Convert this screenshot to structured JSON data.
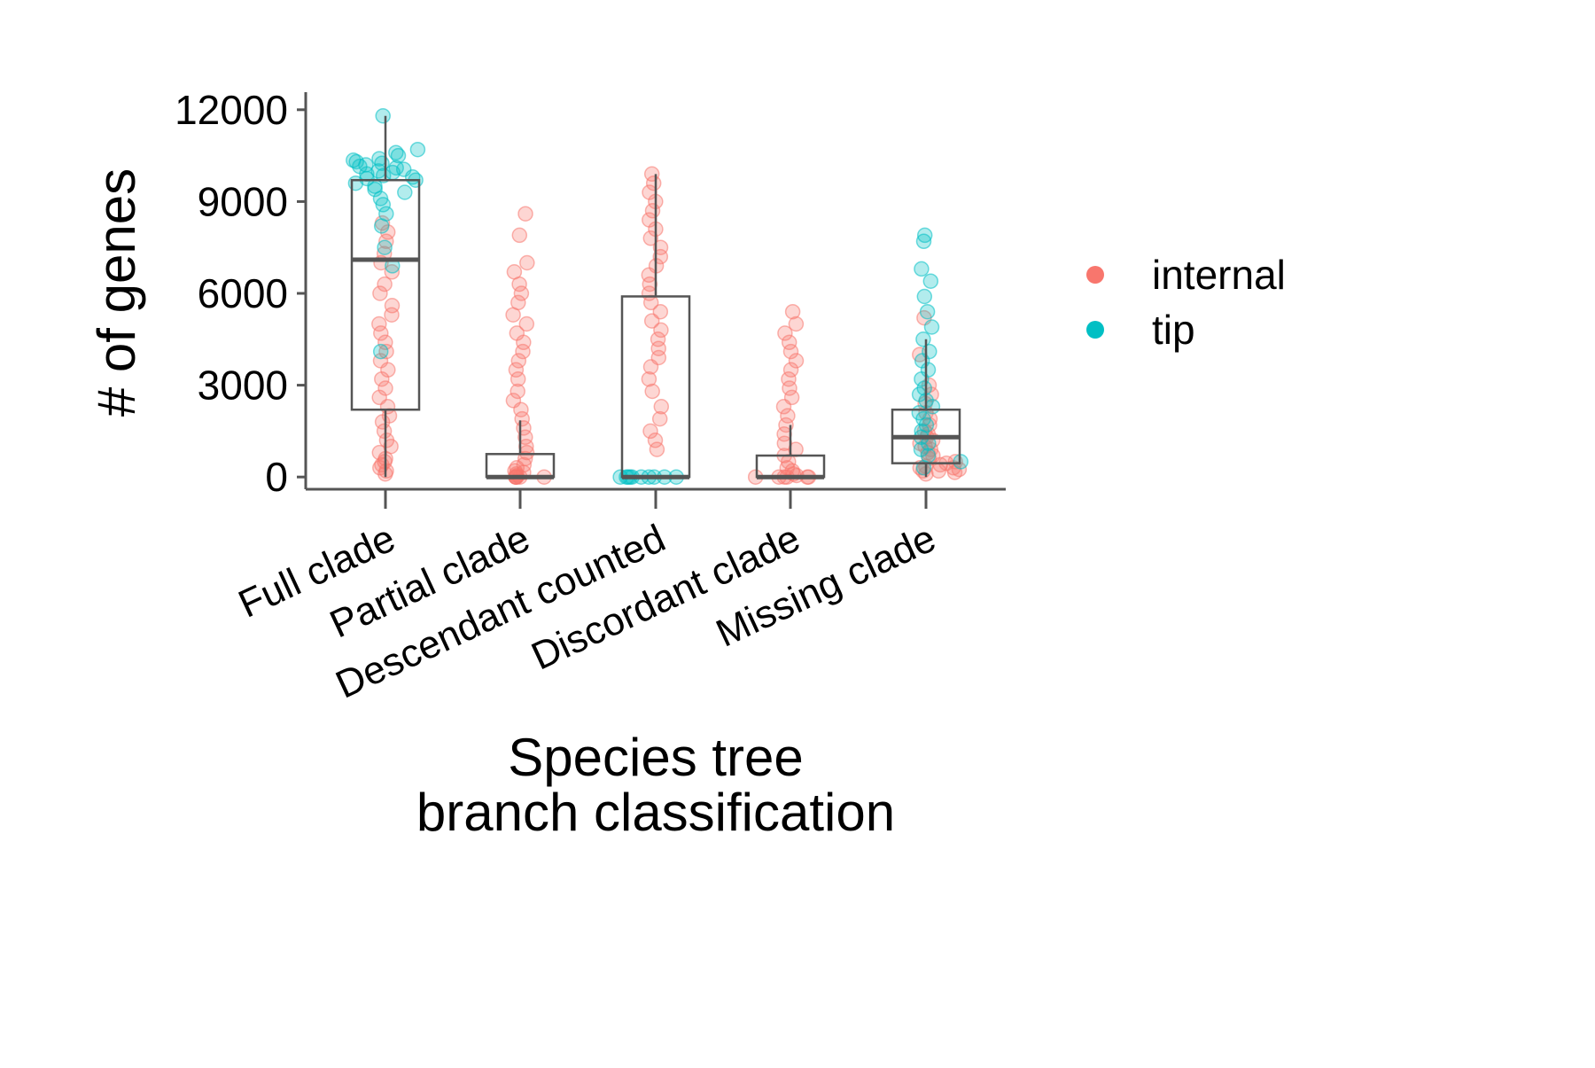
{
  "chart_data": {
    "type": "box-jitter",
    "categories": [
      "Full clade",
      "Partial clade",
      "Descendant counted",
      "Discordant clade",
      "Missing clade"
    ],
    "xlabel": "Species tree\nbranch classification",
    "ylabel": "# of genes",
    "ylim": [
      -400,
      12400
    ],
    "yticks": [
      0,
      3000,
      6000,
      9000,
      12000
    ],
    "legend": {
      "position": "right"
    },
    "series": [
      {
        "name": "internal",
        "color": "#F8766D"
      },
      {
        "name": "tip",
        "color": "#00BFC4"
      }
    ],
    "boxes": [
      {
        "category": "Full clade",
        "q1": 2200,
        "median": 7100,
        "q3": 9700,
        "whisker_low": 0,
        "whisker_high": 11800
      },
      {
        "category": "Partial clade",
        "q1": 0,
        "median": 0,
        "q3": 750,
        "whisker_low": 0,
        "whisker_high": 1850
      },
      {
        "category": "Descendant counted",
        "q1": 0,
        "median": 0,
        "q3": 5900,
        "whisker_low": 0,
        "whisker_high": 9900
      },
      {
        "category": "Discordant clade",
        "q1": 0,
        "median": 0,
        "q3": 700,
        "whisker_low": 0,
        "whisker_high": 1700
      },
      {
        "category": "Missing clade",
        "q1": 450,
        "median": 1300,
        "q3": 2200,
        "whisker_low": 0,
        "whisker_high": 4500
      }
    ],
    "points": {
      "Full clade": {
        "internal": [
          100,
          200,
          300,
          400,
          500,
          600,
          800,
          1000,
          1200,
          1500,
          1800,
          2000,
          2300,
          2600,
          2900,
          3200,
          3500,
          3800,
          4100,
          4400,
          4700,
          5000,
          5300,
          5600,
          6000,
          6300,
          6700,
          7000,
          7300,
          7700,
          8000,
          8300
        ],
        "tip": [
          4100,
          6900,
          7500,
          8200,
          8600,
          8900,
          9100,
          9300,
          9400,
          9500,
          9600,
          9700,
          9750,
          9800,
          9850,
          9900,
          9950,
          10000,
          10050,
          10100,
          10150,
          10200,
          10250,
          10300,
          10350,
          10400,
          10500,
          10600,
          10700,
          11800
        ]
      },
      "Partial clade": {
        "internal": [
          0,
          0,
          0,
          0,
          0,
          0,
          50,
          100,
          150,
          200,
          300,
          400,
          600,
          800,
          1000,
          1300,
          1600,
          1900,
          2200,
          2500,
          2800,
          3200,
          3500,
          3800,
          4100,
          4400,
          4700,
          5000,
          5300,
          5700,
          6000,
          6300,
          6700,
          7000,
          7900,
          8600
        ],
        "tip": []
      },
      "Descendant counted": {
        "internal": [
          900,
          1200,
          1500,
          1900,
          2300,
          2800,
          3200,
          3600,
          3900,
          4200,
          4500,
          4800,
          5100,
          5400,
          5700,
          6000,
          6300,
          6600,
          6900,
          7200,
          7500,
          7800,
          8100,
          8400,
          8700,
          9000,
          9300,
          9600,
          9900
        ],
        "tip": [
          0,
          0,
          0,
          0,
          0,
          0,
          0,
          0,
          0,
          0
        ]
      },
      "Discordant clade": {
        "internal": [
          0,
          0,
          0,
          0,
          0,
          0,
          50,
          100,
          200,
          300,
          500,
          700,
          900,
          1100,
          1400,
          1700,
          2000,
          2300,
          2600,
          2900,
          3200,
          3500,
          3800,
          4100,
          4400,
          4700,
          5000,
          5400
        ],
        "tip": []
      },
      "Missing clade": {
        "internal": [
          100,
          150,
          200,
          200,
          250,
          300,
          300,
          350,
          400,
          450,
          500,
          600,
          700,
          800,
          900,
          1000,
          1100,
          1200,
          1300,
          1400,
          1500,
          1700,
          1900,
          2100,
          2400,
          2700,
          3000,
          4000,
          5200
        ],
        "tip": [
          300,
          500,
          700,
          900,
          1100,
          1300,
          1500,
          1700,
          1900,
          2100,
          2300,
          2500,
          2700,
          2900,
          3200,
          3500,
          3800,
          4100,
          4500,
          4900,
          5400,
          5900,
          6400,
          6800,
          7700,
          7900
        ]
      }
    }
  }
}
